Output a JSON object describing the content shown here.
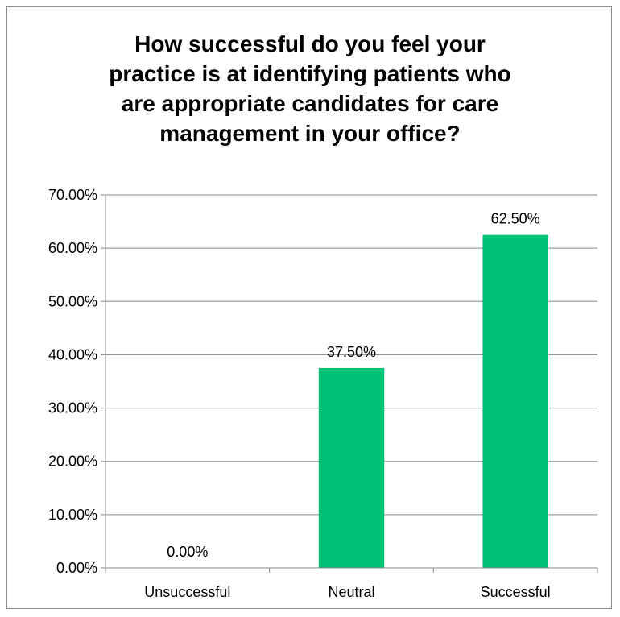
{
  "chart_data": {
    "type": "bar",
    "title_lines": [
      "How successful do you feel your",
      "practice is at identifying patients who",
      "are appropriate candidates for care",
      "management in your office?"
    ],
    "categories": [
      "Unsuccessful",
      "Neutral",
      "Successful"
    ],
    "values": [
      0.0,
      37.5,
      62.5
    ],
    "data_labels": [
      "0.00%",
      "37.50%",
      "62.50%"
    ],
    "ylim": [
      0,
      70
    ],
    "y_ticks": [
      0,
      10,
      20,
      30,
      40,
      50,
      60,
      70
    ],
    "y_tick_labels": [
      "0.00%",
      "10.00%",
      "20.00%",
      "30.00%",
      "40.00%",
      "50.00%",
      "60.00%",
      "70.00%"
    ],
    "grid": true,
    "legend": "none",
    "bar_color": "#00c073",
    "grid_color": "#878787"
  }
}
